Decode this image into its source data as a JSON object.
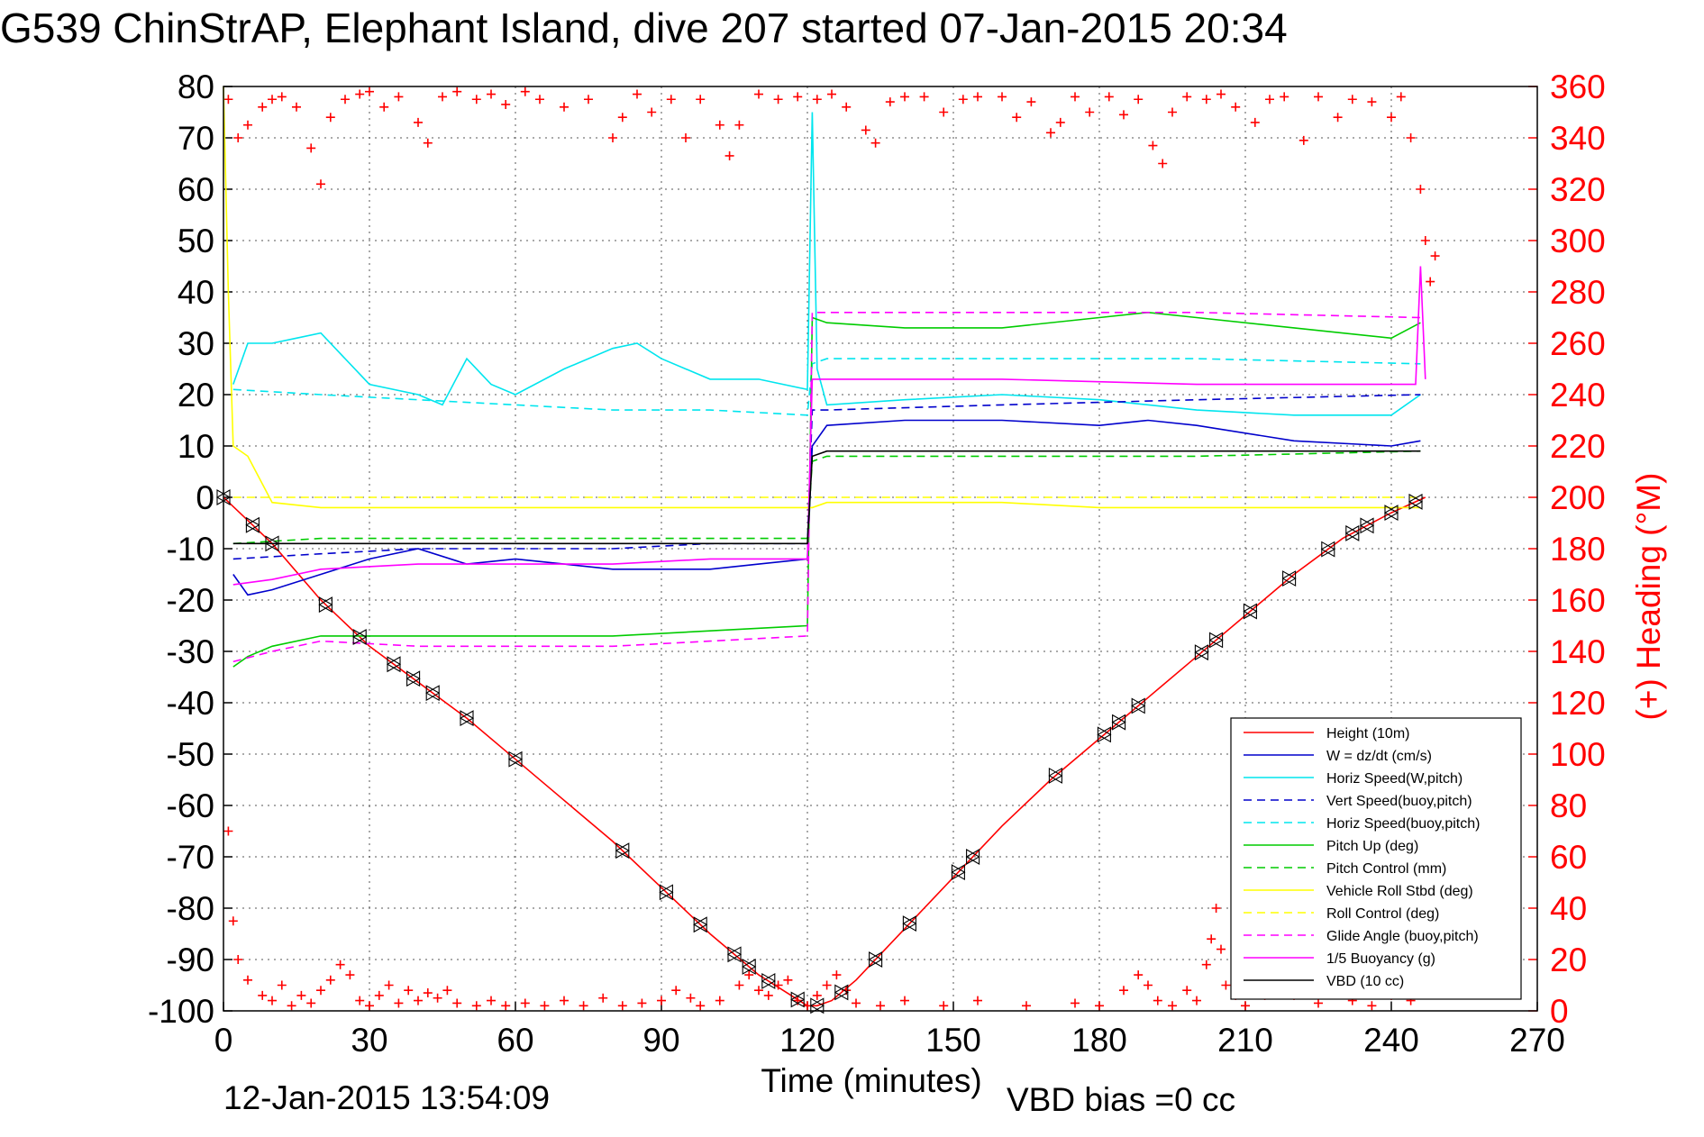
{
  "title": "G539 ChinStrAP, Elephant Island, dive 207 started 07-Jan-2015 20:34",
  "timestamp": "12-Jan-2015 13:54:09",
  "vbd_bias": "VBD bias =0 cc",
  "chart_data": {
    "type": "line",
    "xlabel": "Time (minutes)",
    "ylabel_right": "(+) Heading (°M)",
    "xlim": [
      0,
      270
    ],
    "ylim": [
      -100,
      80
    ],
    "ylim_right": [
      0,
      360
    ],
    "xticks": [
      "0",
      "30",
      "60",
      "90",
      "120",
      "150",
      "180",
      "210",
      "240",
      "270"
    ],
    "yticks": [
      "80",
      "70",
      "60",
      "50",
      "40",
      "30",
      "20",
      "10",
      "0",
      "-10",
      "-20",
      "-30",
      "-40",
      "-50",
      "-60",
      "-70",
      "-80",
      "-90",
      "-100"
    ],
    "yticks_right": [
      "360",
      "340",
      "320",
      "300",
      "280",
      "260",
      "240",
      "220",
      "200",
      "180",
      "160",
      "140",
      "120",
      "100",
      "80",
      "60",
      "40",
      "20",
      "0"
    ],
    "grid": true,
    "legend_position": "lower-right",
    "colors": {
      "red": "#ff0000",
      "blue": "#0000cc",
      "cyan": "#00e5ee",
      "green": "#00cc00",
      "yellow": "#ffff00",
      "magenta": "#ff00ff",
      "black": "#000000"
    },
    "legend": [
      {
        "label": "Height (10m)",
        "color": "#ff0000",
        "dash": false
      },
      {
        "label": "W = dz/dt (cm/s)",
        "color": "#0000cc",
        "dash": false
      },
      {
        "label": "Horiz Speed(W,pitch)",
        "color": "#00e5ee",
        "dash": false
      },
      {
        "label": "Vert Speed(buoy,pitch)",
        "color": "#0000cc",
        "dash": true
      },
      {
        "label": "Horiz Speed(buoy,pitch)",
        "color": "#00e5ee",
        "dash": true
      },
      {
        "label": "Pitch Up (deg)",
        "color": "#00cc00",
        "dash": false
      },
      {
        "label": "Pitch Control (mm)",
        "color": "#00cc00",
        "dash": true
      },
      {
        "label": "Vehicle Roll Stbd (deg)",
        "color": "#ffff00",
        "dash": false
      },
      {
        "label": "Roll Control (deg)",
        "color": "#ffff00",
        "dash": true
      },
      {
        "label": "Glide Angle (buoy,pitch)",
        "color": "#ff00ff",
        "dash": true
      },
      {
        "label": "1/5 Buoyancy (g)",
        "color": "#ff00ff",
        "dash": false
      },
      {
        "label": "VBD (10 cc)",
        "color": "#000000",
        "dash": false
      }
    ],
    "series": [
      {
        "name": "Height (10m)",
        "color": "#ff0000",
        "x": [
          0,
          10,
          20,
          30,
          40,
          50,
          60,
          70,
          80,
          90,
          100,
          110,
          115,
          120,
          122,
          125,
          130,
          140,
          150,
          160,
          170,
          180,
          190,
          200,
          210,
          220,
          230,
          240,
          247
        ],
        "y": [
          0,
          -9,
          -20,
          -29,
          -36,
          -43,
          -51,
          -59,
          -67,
          -76,
          -85,
          -93,
          -96,
          -99,
          -99,
          -98,
          -94,
          -84,
          -74,
          -64,
          -55,
          -47,
          -39,
          -31,
          -23,
          -15,
          -8,
          -3,
          0
        ]
      },
      {
        "name": "W = dz/dt (cm/s)",
        "color": "#0000cc",
        "x": [
          2,
          5,
          10,
          20,
          30,
          40,
          50,
          60,
          70,
          80,
          90,
          100,
          110,
          120,
          121,
          124,
          140,
          160,
          180,
          190,
          200,
          220,
          240,
          246
        ],
        "y": [
          -15,
          -19,
          -18,
          -15,
          -12,
          -10,
          -13,
          -12,
          -13,
          -14,
          -14,
          -14,
          -13,
          -12,
          10,
          14,
          15,
          15,
          14,
          15,
          14,
          11,
          10,
          11
        ]
      },
      {
        "name": "Horiz Speed(W,pitch)",
        "color": "#00e5ee",
        "x": [
          2,
          5,
          10,
          15,
          20,
          30,
          40,
          45,
          50,
          55,
          60,
          70,
          80,
          85,
          90,
          100,
          110,
          120,
          121,
          122,
          124,
          140,
          160,
          180,
          200,
          220,
          240,
          246
        ],
        "y": [
          22,
          30,
          30,
          31,
          32,
          22,
          20,
          18,
          27,
          22,
          20,
          25,
          29,
          30,
          27,
          23,
          23,
          21,
          75,
          25,
          18,
          19,
          20,
          19,
          17,
          16,
          16,
          20
        ]
      },
      {
        "name": "Vert Speed(buoy,pitch)",
        "color": "#0000cc",
        "dash": true,
        "x": [
          2,
          20,
          40,
          60,
          80,
          100,
          120,
          121,
          124,
          160,
          200,
          246
        ],
        "y": [
          -12,
          -11,
          -10,
          -10,
          -10,
          -9,
          -9,
          17,
          17,
          18,
          19,
          20
        ]
      },
      {
        "name": "Horiz Speed(buoy,pitch)",
        "color": "#00e5ee",
        "dash": true,
        "x": [
          2,
          20,
          40,
          60,
          80,
          100,
          120,
          121,
          124,
          160,
          200,
          246
        ],
        "y": [
          21,
          20,
          19,
          18,
          17,
          17,
          16,
          26,
          27,
          27,
          27,
          26
        ]
      },
      {
        "name": "Pitch Up (deg)",
        "color": "#00cc00",
        "x": [
          2,
          5,
          10,
          20,
          40,
          60,
          80,
          100,
          120,
          121,
          124,
          140,
          160,
          180,
          190,
          200,
          220,
          240,
          246
        ],
        "y": [
          -33,
          -31,
          -29,
          -27,
          -27,
          -27,
          -27,
          -26,
          -25,
          35,
          34,
          33,
          33,
          35,
          36,
          35,
          33,
          31,
          34
        ]
      },
      {
        "name": "Pitch Control (mm)",
        "color": "#00cc00",
        "dash": true,
        "x": [
          2,
          20,
          60,
          120,
          121,
          124,
          200,
          246
        ],
        "y": [
          -9,
          -8,
          -8,
          -8,
          7,
          8,
          8,
          9
        ]
      },
      {
        "name": "Vehicle Roll Stbd (deg)",
        "color": "#ffff00",
        "x": [
          0,
          1,
          2,
          5,
          10,
          20,
          40,
          60,
          80,
          100,
          120,
          121,
          124,
          140,
          160,
          180,
          200,
          220,
          240,
          246
        ],
        "y": [
          80,
          40,
          10,
          8,
          -1,
          -2,
          -2,
          -2,
          -2,
          -2,
          -2,
          -2,
          -1,
          -1,
          -1,
          -2,
          -2,
          -2,
          -2,
          -2
        ]
      },
      {
        "name": "Roll Control (deg)",
        "color": "#ffff00",
        "dash": true,
        "x": [
          2,
          246
        ],
        "y": [
          0,
          0
        ]
      },
      {
        "name": "Glide Angle (buoy,pitch)",
        "color": "#ff00ff",
        "dash": true,
        "x": [
          2,
          10,
          20,
          40,
          60,
          80,
          100,
          120,
          121,
          124,
          160,
          200,
          246
        ],
        "y": [
          -32,
          -30,
          -28,
          -29,
          -29,
          -29,
          -28,
          -27,
          36,
          36,
          36,
          36,
          35
        ]
      },
      {
        "name": "1/5 Buoyancy (g)",
        "color": "#ff00ff",
        "x": [
          2,
          10,
          20,
          40,
          60,
          80,
          100,
          120,
          121,
          124,
          160,
          200,
          245,
          246,
          247
        ],
        "y": [
          -17,
          -16,
          -14,
          -13,
          -13,
          -13,
          -12,
          -12,
          23,
          23,
          23,
          22,
          22,
          45,
          23
        ]
      },
      {
        "name": "VBD (10 cc)",
        "color": "#000000",
        "x": [
          2,
          20,
          60,
          120,
          121,
          124,
          160,
          200,
          246
        ],
        "y": [
          -9,
          -9,
          -9,
          -9,
          8,
          9,
          9,
          9,
          9
        ]
      }
    ],
    "heading_points": [
      [
        1,
        355
      ],
      [
        3,
        340
      ],
      [
        5,
        345
      ],
      [
        8,
        352
      ],
      [
        10,
        355
      ],
      [
        12,
        356
      ],
      [
        15,
        352
      ],
      [
        18,
        336
      ],
      [
        20,
        322
      ],
      [
        22,
        348
      ],
      [
        25,
        355
      ],
      [
        28,
        357
      ],
      [
        30,
        358
      ],
      [
        33,
        352
      ],
      [
        36,
        356
      ],
      [
        40,
        346
      ],
      [
        42,
        338
      ],
      [
        45,
        356
      ],
      [
        48,
        358
      ],
      [
        52,
        355
      ],
      [
        55,
        357
      ],
      [
        58,
        353
      ],
      [
        62,
        358
      ],
      [
        65,
        355
      ],
      [
        70,
        352
      ],
      [
        75,
        355
      ],
      [
        80,
        340
      ],
      [
        82,
        348
      ],
      [
        85,
        357
      ],
      [
        88,
        350
      ],
      [
        92,
        355
      ],
      [
        95,
        340
      ],
      [
        98,
        355
      ],
      [
        102,
        345
      ],
      [
        104,
        333
      ],
      [
        106,
        345
      ],
      [
        110,
        357
      ],
      [
        114,
        355
      ],
      [
        118,
        356
      ],
      [
        122,
        355
      ],
      [
        125,
        357
      ],
      [
        128,
        352
      ],
      [
        132,
        343
      ],
      [
        134,
        338
      ],
      [
        137,
        354
      ],
      [
        140,
        356
      ],
      [
        144,
        356
      ],
      [
        148,
        350
      ],
      [
        152,
        355
      ],
      [
        155,
        356
      ],
      [
        160,
        356
      ],
      [
        163,
        348
      ],
      [
        166,
        354
      ],
      [
        170,
        342
      ],
      [
        172,
        346
      ],
      [
        175,
        356
      ],
      [
        178,
        350
      ],
      [
        182,
        356
      ],
      [
        185,
        349
      ],
      [
        188,
        355
      ],
      [
        191,
        337
      ],
      [
        193,
        330
      ],
      [
        195,
        350
      ],
      [
        198,
        356
      ],
      [
        202,
        355
      ],
      [
        205,
        357
      ],
      [
        208,
        352
      ],
      [
        212,
        346
      ],
      [
        215,
        355
      ],
      [
        218,
        356
      ],
      [
        222,
        339
      ],
      [
        225,
        356
      ],
      [
        229,
        348
      ],
      [
        232,
        355
      ],
      [
        236,
        354
      ],
      [
        240,
        348
      ],
      [
        242,
        356
      ],
      [
        244,
        340
      ],
      [
        246,
        320
      ],
      [
        247,
        300
      ],
      [
        248,
        284
      ],
      [
        249,
        294
      ],
      [
        1,
        70
      ],
      [
        2,
        35
      ],
      [
        3,
        20
      ],
      [
        5,
        12
      ],
      [
        8,
        6
      ],
      [
        10,
        4
      ],
      [
        12,
        10
      ],
      [
        14,
        2
      ],
      [
        16,
        6
      ],
      [
        18,
        3
      ],
      [
        20,
        8
      ],
      [
        22,
        12
      ],
      [
        24,
        18
      ],
      [
        26,
        14
      ],
      [
        28,
        4
      ],
      [
        30,
        2
      ],
      [
        32,
        6
      ],
      [
        34,
        10
      ],
      [
        36,
        3
      ],
      [
        38,
        8
      ],
      [
        40,
        4
      ],
      [
        42,
        7
      ],
      [
        44,
        5
      ],
      [
        46,
        8
      ],
      [
        48,
        3
      ],
      [
        52,
        2
      ],
      [
        55,
        4
      ],
      [
        58,
        2
      ],
      [
        62,
        3
      ],
      [
        66,
        2
      ],
      [
        70,
        4
      ],
      [
        74,
        2
      ],
      [
        78,
        5
      ],
      [
        82,
        2
      ],
      [
        86,
        3
      ],
      [
        90,
        4
      ],
      [
        93,
        8
      ],
      [
        96,
        5
      ],
      [
        98,
        2
      ],
      [
        102,
        4
      ],
      [
        106,
        10
      ],
      [
        108,
        14
      ],
      [
        110,
        8
      ],
      [
        112,
        6
      ],
      [
        114,
        10
      ],
      [
        116,
        12
      ],
      [
        118,
        4
      ],
      [
        120,
        2
      ],
      [
        122,
        6
      ],
      [
        124,
        10
      ],
      [
        126,
        14
      ],
      [
        128,
        8
      ],
      [
        130,
        3
      ],
      [
        135,
        2
      ],
      [
        140,
        4
      ],
      [
        148,
        2
      ],
      [
        155,
        4
      ],
      [
        165,
        2
      ],
      [
        175,
        3
      ],
      [
        180,
        2
      ],
      [
        185,
        8
      ],
      [
        188,
        14
      ],
      [
        190,
        10
      ],
      [
        192,
        4
      ],
      [
        195,
        2
      ],
      [
        198,
        8
      ],
      [
        200,
        4
      ],
      [
        202,
        18
      ],
      [
        203,
        28
      ],
      [
        204,
        40
      ],
      [
        205,
        24
      ],
      [
        206,
        10
      ],
      [
        208,
        6
      ],
      [
        210,
        2
      ],
      [
        214,
        6
      ],
      [
        218,
        12
      ],
      [
        220,
        6
      ],
      [
        225,
        3
      ],
      [
        230,
        10
      ],
      [
        232,
        4
      ],
      [
        236,
        2
      ],
      [
        240,
        6
      ],
      [
        244,
        4
      ]
    ]
  }
}
